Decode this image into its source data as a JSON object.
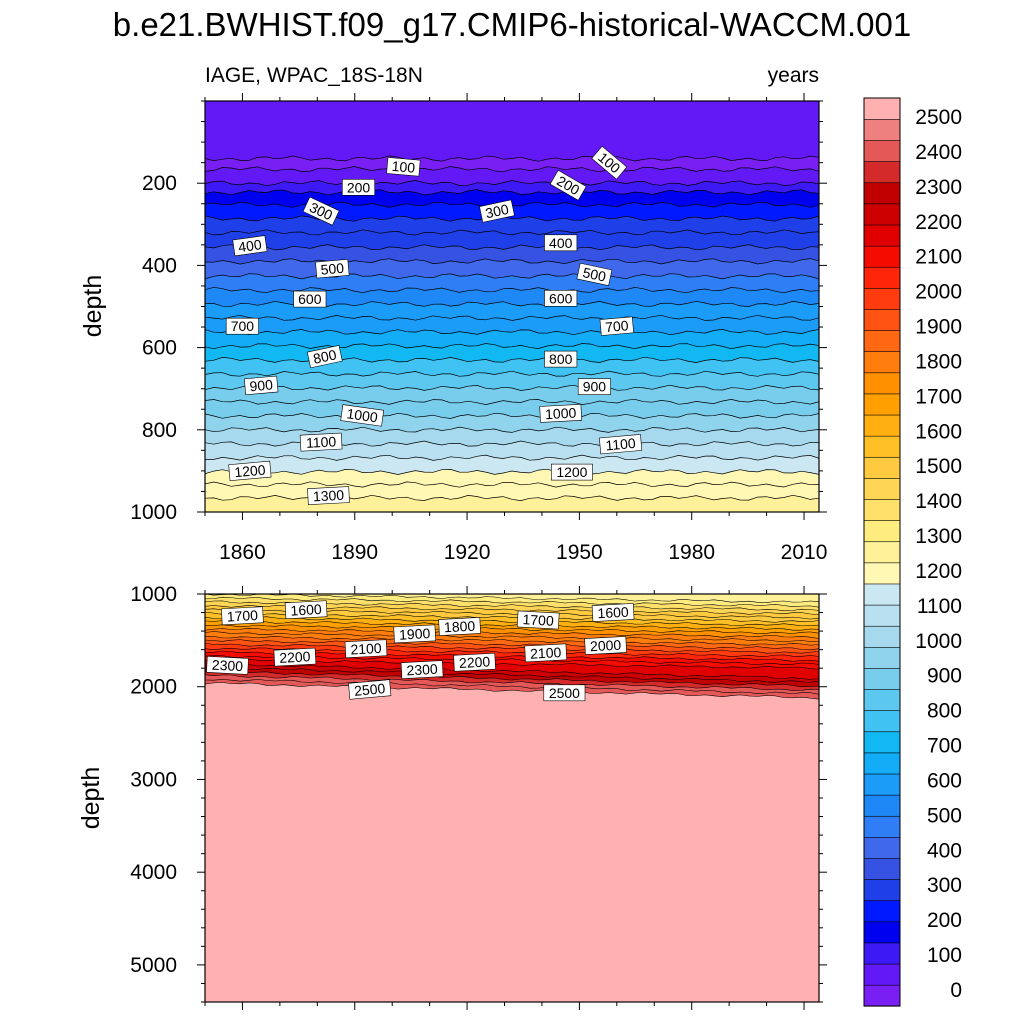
{
  "chart_data": {
    "type": "contour",
    "title": "b.e21.BWHIST.f09_g17.CMIP6-historical-WACCM.001",
    "left_label": "IAGE, WPAC_18S-18N",
    "right_label": "years",
    "colorbar": {
      "labels": [
        "0",
        "100",
        "200",
        "300",
        "400",
        "500",
        "600",
        "700",
        "800",
        "900",
        "1000",
        "1100",
        "1200",
        "1300",
        "1400",
        "1500",
        "1600",
        "1700",
        "1800",
        "1900",
        "2000",
        "2100",
        "2200",
        "2300",
        "2400",
        "2500"
      ],
      "colors": [
        "#7a1ff4",
        "#6219f5",
        "#3d1af5",
        "#0000f0",
        "#0019ff",
        "#1f3fe8",
        "#3552e2",
        "#3f68ea",
        "#2f7ef5",
        "#1d88f6",
        "#1a9cf8",
        "#12acf7",
        "#12b8f2",
        "#40c2f2",
        "#5cc8f0",
        "#78ccec",
        "#8fd3ec",
        "#a6d9ee",
        "#b8e0f0",
        "#cbe8f2",
        "#fff7b4",
        "#fff199",
        "#ffec7f",
        "#ffe06a",
        "#ffd555",
        "#ffca40",
        "#ffc026",
        "#ffb010",
        "#ffa000",
        "#ff9000",
        "#ff7d0c",
        "#ff6812",
        "#ff5314",
        "#ff3b10",
        "#ff2508",
        "#f50c00",
        "#e00000",
        "#cc0000",
        "#c10000",
        "#d42a2a",
        "#e45858",
        "#ef8080",
        "#ffb0b0"
      ]
    },
    "panels": [
      {
        "name": "upper",
        "xlabel": "",
        "ylabel": "depth",
        "xlim": [
          1850,
          2014
        ],
        "ylim": [
          1000,
          0
        ],
        "xticks": [
          1860,
          1890,
          1920,
          1950,
          1980,
          2010
        ],
        "yticks": [
          200,
          400,
          600,
          800,
          1000
        ],
        "contour_interval": 50,
        "levels_depth": [
          {
            "value": 50,
            "depth": 140
          },
          {
            "value": 100,
            "depth": 166
          },
          {
            "value": 150,
            "depth": 200
          },
          {
            "value": 200,
            "depth": 222
          },
          {
            "value": 250,
            "depth": 252
          },
          {
            "value": 300,
            "depth": 286
          },
          {
            "value": 350,
            "depth": 320
          },
          {
            "value": 400,
            "depth": 356
          },
          {
            "value": 450,
            "depth": 390
          },
          {
            "value": 500,
            "depth": 426
          },
          {
            "value": 550,
            "depth": 460
          },
          {
            "value": 600,
            "depth": 494
          },
          {
            "value": 650,
            "depth": 528
          },
          {
            "value": 700,
            "depth": 562
          },
          {
            "value": 750,
            "depth": 596
          },
          {
            "value": 800,
            "depth": 630
          },
          {
            "value": 850,
            "depth": 664
          },
          {
            "value": 900,
            "depth": 698
          },
          {
            "value": 950,
            "depth": 732
          },
          {
            "value": 1000,
            "depth": 766
          },
          {
            "value": 1050,
            "depth": 800
          },
          {
            "value": 1100,
            "depth": 834
          },
          {
            "value": 1150,
            "depth": 868
          },
          {
            "value": 1200,
            "depth": 902
          },
          {
            "value": 1250,
            "depth": 933
          },
          {
            "value": 1300,
            "depth": 966
          }
        ],
        "contour_labels": [
          {
            "text": "100",
            "x": 1903,
            "y": 160,
            "rot": 5
          },
          {
            "text": "100",
            "x": 1958,
            "y": 150,
            "rot": 40
          },
          {
            "text": "200",
            "x": 1891,
            "y": 210,
            "rot": 0
          },
          {
            "text": "200",
            "x": 1947,
            "y": 205,
            "rot": 30
          },
          {
            "text": "300",
            "x": 1881,
            "y": 268,
            "rot": 25
          },
          {
            "text": "300",
            "x": 1928,
            "y": 268,
            "rot": -12
          },
          {
            "text": "400",
            "x": 1862,
            "y": 352,
            "rot": -8
          },
          {
            "text": "400",
            "x": 1945,
            "y": 345,
            "rot": 0
          },
          {
            "text": "500",
            "x": 1884,
            "y": 408,
            "rot": -5
          },
          {
            "text": "500",
            "x": 1954,
            "y": 422,
            "rot": 12
          },
          {
            "text": "600",
            "x": 1878,
            "y": 482,
            "rot": 0
          },
          {
            "text": "600",
            "x": 1945,
            "y": 480,
            "rot": 0
          },
          {
            "text": "700",
            "x": 1860,
            "y": 548,
            "rot": 0
          },
          {
            "text": "700",
            "x": 1960,
            "y": 548,
            "rot": -5
          },
          {
            "text": "800",
            "x": 1882,
            "y": 622,
            "rot": -12
          },
          {
            "text": "800",
            "x": 1945,
            "y": 628,
            "rot": 0
          },
          {
            "text": "900",
            "x": 1865,
            "y": 692,
            "rot": -5
          },
          {
            "text": "900",
            "x": 1954,
            "y": 695,
            "rot": 0
          },
          {
            "text": "1000",
            "x": 1892,
            "y": 765,
            "rot": 8
          },
          {
            "text": "1000",
            "x": 1945,
            "y": 760,
            "rot": -3
          },
          {
            "text": "1100",
            "x": 1881,
            "y": 830,
            "rot": -3
          },
          {
            "text": "1100",
            "x": 1961,
            "y": 835,
            "rot": -5
          },
          {
            "text": "1200",
            "x": 1862,
            "y": 900,
            "rot": -5
          },
          {
            "text": "1200",
            "x": 1948,
            "y": 903,
            "rot": 0
          },
          {
            "text": "1300",
            "x": 1883,
            "y": 960,
            "rot": -3
          }
        ]
      },
      {
        "name": "lower",
        "xlabel": "",
        "ylabel": "depth",
        "xlim": [
          1850,
          2014
        ],
        "ylim": [
          5400,
          1000
        ],
        "xticks": [
          1860,
          1890,
          1920,
          1950,
          1980,
          2010
        ],
        "yticks": [
          1000,
          2000,
          3000,
          4000,
          5000
        ],
        "contour_interval": 50,
        "contour_labels": [
          {
            "text": "1700",
            "x": 1860,
            "y": 1235,
            "rot": -3
          },
          {
            "text": "1600",
            "x": 1877,
            "y": 1170,
            "rot": -3
          },
          {
            "text": "1900",
            "x": 1906,
            "y": 1430,
            "rot": -3
          },
          {
            "text": "1800",
            "x": 1918,
            "y": 1350,
            "rot": -3
          },
          {
            "text": "1700",
            "x": 1939,
            "y": 1280,
            "rot": 3
          },
          {
            "text": "1600",
            "x": 1959,
            "y": 1200,
            "rot": -3
          },
          {
            "text": "2300",
            "x": 1856,
            "y": 1770,
            "rot": 3
          },
          {
            "text": "2200",
            "x": 1874,
            "y": 1680,
            "rot": -3
          },
          {
            "text": "2100",
            "x": 1893,
            "y": 1590,
            "rot": -3
          },
          {
            "text": "2300",
            "x": 1908,
            "y": 1815,
            "rot": -3
          },
          {
            "text": "2200",
            "x": 1922,
            "y": 1735,
            "rot": -3
          },
          {
            "text": "2100",
            "x": 1941,
            "y": 1635,
            "rot": -3
          },
          {
            "text": "2000",
            "x": 1957,
            "y": 1555,
            "rot": -3
          },
          {
            "text": "2500",
            "x": 1894,
            "y": 2030,
            "rot": -5
          },
          {
            "text": "2500",
            "x": 1946,
            "y": 2065,
            "rot": 0
          }
        ]
      }
    ]
  }
}
